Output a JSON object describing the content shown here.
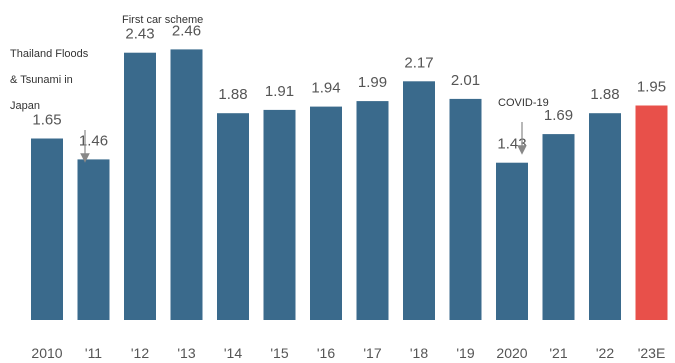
{
  "chart_data": {
    "type": "bar",
    "title": "",
    "xlabel": "",
    "ylabel": "",
    "categories": [
      "2010",
      "'11",
      "'12",
      "'13",
      "'14",
      "'15",
      "'16",
      "'17",
      "'18",
      "'19",
      "2020",
      "'21",
      "'22",
      "'23E"
    ],
    "values": [
      1.65,
      1.46,
      2.43,
      2.46,
      1.88,
      1.91,
      1.94,
      1.99,
      2.17,
      2.01,
      1.43,
      1.69,
      1.88,
      1.95
    ],
    "value_labels": [
      "1.65",
      "1.46",
      "2.43",
      "2.46",
      "1.88",
      "1.91",
      "1.94",
      "1.99",
      "2.17",
      "2.01",
      "1.43",
      "1.69",
      "1.88",
      "1.95"
    ],
    "ylim": [
      0,
      2.5
    ],
    "grid": false,
    "colors": {
      "actual": "#3a6a8c",
      "estimate": "#e8504a"
    },
    "highlight_category": "'23E",
    "annotations": [
      {
        "lines": [
          "Thailand Floods",
          "& Tsunami in",
          "Japan"
        ],
        "category": "'11",
        "arrow": true
      },
      {
        "lines": [
          "First car scheme"
        ],
        "category": "'12",
        "arrow": false
      },
      {
        "lines": [
          "COVID-19"
        ],
        "category": "2020",
        "arrow": true
      }
    ]
  }
}
